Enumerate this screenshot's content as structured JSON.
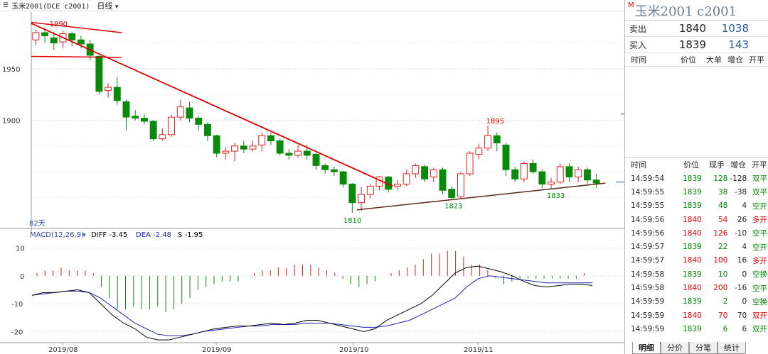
{
  "header": {
    "symbol": "玉米2001(DCE c2001)",
    "period": "日线",
    "period_arrow": "chevron-down-icon",
    "duration_label": "82天"
  },
  "chart_data": [
    {
      "type": "candlestick",
      "y_ticks": [
        "1950",
        "1900"
      ],
      "x_ticks": [
        "2019/08",
        "2019/09",
        "2019/10",
        "2019/11"
      ],
      "annotations": [
        "1990",
        "1895",
        "1810",
        "1823",
        "1833"
      ],
      "colors": {
        "up": "#e02020",
        "down": "#0a8a0a",
        "trendline": "#e00000",
        "support": "#5a2a1a"
      },
      "candles": [
        {
          "o": 1978,
          "c": 1985,
          "h": 1988,
          "l": 1973
        },
        {
          "o": 1985,
          "c": 1982,
          "h": 1990,
          "l": 1975
        },
        {
          "o": 1980,
          "c": 1975,
          "h": 1986,
          "l": 1968
        },
        {
          "o": 1976,
          "c": 1984,
          "h": 1987,
          "l": 1970
        },
        {
          "o": 1984,
          "c": 1978,
          "h": 1986,
          "l": 1972
        },
        {
          "o": 1978,
          "c": 1974,
          "h": 1982,
          "l": 1970
        },
        {
          "o": 1974,
          "c": 1963,
          "h": 1978,
          "l": 1958
        },
        {
          "o": 1962,
          "c": 1928,
          "h": 1963,
          "l": 1925
        },
        {
          "o": 1929,
          "c": 1932,
          "h": 1936,
          "l": 1922
        },
        {
          "o": 1932,
          "c": 1919,
          "h": 1942,
          "l": 1915
        },
        {
          "o": 1918,
          "c": 1903,
          "h": 1920,
          "l": 1890
        },
        {
          "o": 1904,
          "c": 1902,
          "h": 1910,
          "l": 1900
        },
        {
          "o": 1902,
          "c": 1899,
          "h": 1906,
          "l": 1896
        },
        {
          "o": 1899,
          "c": 1882,
          "h": 1900,
          "l": 1880
        },
        {
          "o": 1882,
          "c": 1886,
          "h": 1892,
          "l": 1880
        },
        {
          "o": 1886,
          "c": 1903,
          "h": 1905,
          "l": 1884
        },
        {
          "o": 1903,
          "c": 1913,
          "h": 1920,
          "l": 1900
        },
        {
          "o": 1912,
          "c": 1902,
          "h": 1918,
          "l": 1898
        },
        {
          "o": 1902,
          "c": 1896,
          "h": 1904,
          "l": 1890
        },
        {
          "o": 1896,
          "c": 1885,
          "h": 1898,
          "l": 1880
        },
        {
          "o": 1885,
          "c": 1868,
          "h": 1886,
          "l": 1864
        },
        {
          "o": 1868,
          "c": 1870,
          "h": 1874,
          "l": 1862
        },
        {
          "o": 1870,
          "c": 1875,
          "h": 1878,
          "l": 1860
        },
        {
          "o": 1875,
          "c": 1872,
          "h": 1880,
          "l": 1868
        },
        {
          "o": 1872,
          "c": 1875,
          "h": 1880,
          "l": 1870
        },
        {
          "o": 1876,
          "c": 1885,
          "h": 1888,
          "l": 1870
        },
        {
          "o": 1885,
          "c": 1880,
          "h": 1888,
          "l": 1876
        },
        {
          "o": 1880,
          "c": 1868,
          "h": 1882,
          "l": 1866
        },
        {
          "o": 1868,
          "c": 1866,
          "h": 1872,
          "l": 1862
        },
        {
          "o": 1866,
          "c": 1870,
          "h": 1876,
          "l": 1864
        },
        {
          "o": 1870,
          "c": 1866,
          "h": 1876,
          "l": 1862
        },
        {
          "o": 1867,
          "c": 1856,
          "h": 1868,
          "l": 1852
        },
        {
          "o": 1856,
          "c": 1852,
          "h": 1858,
          "l": 1848
        },
        {
          "o": 1852,
          "c": 1850,
          "h": 1855,
          "l": 1846
        },
        {
          "o": 1850,
          "c": 1838,
          "h": 1851,
          "l": 1835
        },
        {
          "o": 1838,
          "c": 1820,
          "h": 1839,
          "l": 1810
        },
        {
          "o": 1820,
          "c": 1828,
          "h": 1835,
          "l": 1812
        },
        {
          "o": 1828,
          "c": 1836,
          "h": 1838,
          "l": 1824
        },
        {
          "o": 1836,
          "c": 1845,
          "h": 1846,
          "l": 1832
        },
        {
          "o": 1845,
          "c": 1833,
          "h": 1846,
          "l": 1830
        },
        {
          "o": 1836,
          "c": 1838,
          "h": 1842,
          "l": 1832
        },
        {
          "o": 1838,
          "c": 1848,
          "h": 1852,
          "l": 1836
        },
        {
          "o": 1848,
          "c": 1856,
          "h": 1858,
          "l": 1844
        },
        {
          "o": 1855,
          "c": 1843,
          "h": 1857,
          "l": 1840
        },
        {
          "o": 1845,
          "c": 1852,
          "h": 1854,
          "l": 1840
        },
        {
          "o": 1852,
          "c": 1832,
          "h": 1854,
          "l": 1828
        },
        {
          "o": 1833,
          "c": 1825,
          "h": 1836,
          "l": 1823
        },
        {
          "o": 1826,
          "c": 1848,
          "h": 1850,
          "l": 1824
        },
        {
          "o": 1848,
          "c": 1868,
          "h": 1870,
          "l": 1846
        },
        {
          "o": 1867,
          "c": 1873,
          "h": 1877,
          "l": 1862
        },
        {
          "o": 1873,
          "c": 1885,
          "h": 1895,
          "l": 1870
        },
        {
          "o": 1885,
          "c": 1878,
          "h": 1888,
          "l": 1870
        },
        {
          "o": 1876,
          "c": 1852,
          "h": 1878,
          "l": 1846
        },
        {
          "o": 1852,
          "c": 1843,
          "h": 1855,
          "l": 1840
        },
        {
          "o": 1843,
          "c": 1858,
          "h": 1860,
          "l": 1840
        },
        {
          "o": 1858,
          "c": 1850,
          "h": 1862,
          "l": 1848
        },
        {
          "o": 1850,
          "c": 1838,
          "h": 1852,
          "l": 1834
        },
        {
          "o": 1838,
          "c": 1840,
          "h": 1844,
          "l": 1833
        },
        {
          "o": 1840,
          "c": 1855,
          "h": 1858,
          "l": 1838
        },
        {
          "o": 1855,
          "c": 1845,
          "h": 1858,
          "l": 1840
        },
        {
          "o": 1845,
          "c": 1852,
          "h": 1855,
          "l": 1840
        },
        {
          "o": 1852,
          "c": 1842,
          "h": 1854,
          "l": 1838
        },
        {
          "o": 1842,
          "c": 1839,
          "h": 1848,
          "l": 1834
        }
      ]
    },
    {
      "type": "macd",
      "title": "MACD(12,26,9)",
      "y_ticks": [
        "10",
        "0",
        "-10",
        "-20"
      ],
      "diff": -3.45,
      "dea": -2.48,
      "s": -1.95,
      "diff_label": "DIFF -3.45",
      "dea_label": "DEA -2.48",
      "s_label": "S -1.95",
      "colors": {
        "diff": "#000000",
        "dea": "#2020c0",
        "pos": "#e02020",
        "neg": "#0a8a0a"
      }
    }
  ],
  "panel": {
    "m_flag": "M",
    "title": "玉米2001  c2001",
    "sell_label": "卖出",
    "sell_price": "1840",
    "sell_vol": "1038",
    "buy_label": "买入",
    "buy_price": "1839",
    "buy_vol": "143",
    "top_header": [
      "时间",
      "价位",
      "大单",
      "增仓",
      "开平"
    ],
    "tick_header": [
      "时间",
      "价位",
      "现手",
      "增仓",
      "开平"
    ],
    "ticks": [
      {
        "time": "14:59:54",
        "price": "1839",
        "qty": "128",
        "oi": "-128",
        "type": "双平",
        "qc": "#080",
        "oc": "#080"
      },
      {
        "time": "14:59:55",
        "price": "1839",
        "qty": "38",
        "oi": "-38",
        "type": "双平",
        "qc": "#080",
        "oc": "#080"
      },
      {
        "time": "14:59:55",
        "price": "1839",
        "qty": "48",
        "oi": "4",
        "type": "空开",
        "qc": "#080",
        "oc": "#080"
      },
      {
        "time": "14:59:56",
        "price": "1840",
        "qty": "54",
        "oi": "26",
        "type": "多开",
        "qc": "#e00",
        "oc": "#e00"
      },
      {
        "time": "14:59:56",
        "price": "1840",
        "qty": "126",
        "oi": "-10",
        "type": "空平",
        "qc": "#e00",
        "oc": "#080"
      },
      {
        "time": "14:59:57",
        "price": "1839",
        "qty": "22",
        "oi": "4",
        "type": "空开",
        "qc": "#080",
        "oc": "#080"
      },
      {
        "time": "14:59:57",
        "price": "1840",
        "qty": "100",
        "oi": "16",
        "type": "多开",
        "qc": "#e00",
        "oc": "#e00"
      },
      {
        "time": "14:59:58",
        "price": "1839",
        "qty": "10",
        "oi": "0",
        "type": "空换",
        "qc": "#080",
        "oc": "#080"
      },
      {
        "time": "14:59:58",
        "price": "1840",
        "qty": "200",
        "oi": "-16",
        "type": "空平",
        "qc": "#e00",
        "oc": "#080"
      },
      {
        "time": "14:59:59",
        "price": "1839",
        "qty": "2",
        "oi": "0",
        "type": "空换",
        "qc": "#080",
        "oc": "#080"
      },
      {
        "time": "14:59:59",
        "price": "1840",
        "qty": "70",
        "oi": "70",
        "type": "双开",
        "qc": "#e00",
        "oc": "#e00"
      },
      {
        "time": "14:59:59",
        "price": "1839",
        "qty": "6",
        "oi": "6",
        "type": "双开",
        "qc": "#080",
        "oc": "#080"
      }
    ],
    "tabs": [
      "明细",
      "分价",
      "分笔",
      "统计"
    ]
  }
}
